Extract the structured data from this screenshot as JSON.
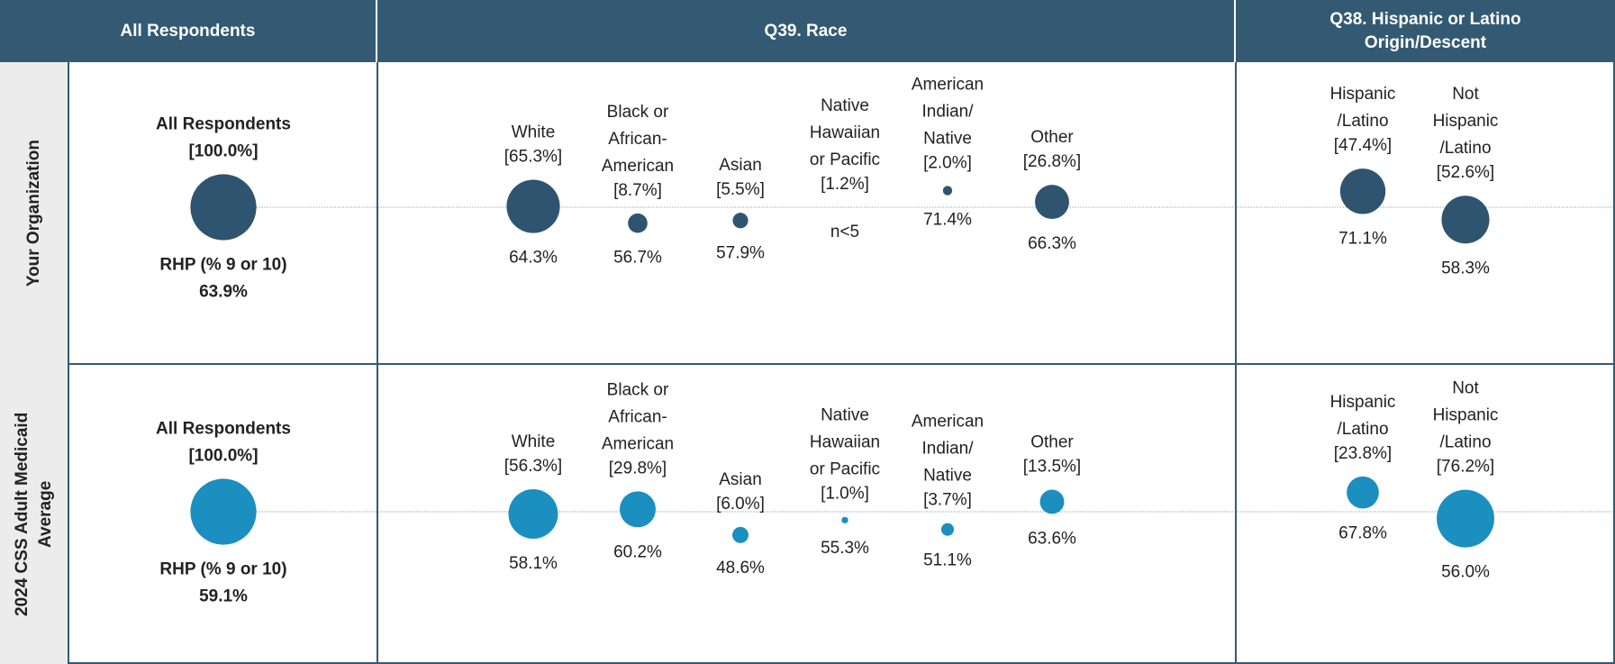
{
  "headers": [
    "All Respondents",
    "Q39. Race",
    "Q38. Hispanic or Latino Origin/Descent"
  ],
  "rows": [
    {
      "label": "Your Organization",
      "color": "#2f5470",
      "all": {
        "label": "All Respondents",
        "share": 100.0,
        "share_label": "[100.0%]",
        "rhp_title": "RHP (% 9 or 10)",
        "rhp": 63.9,
        "rhp_label": "63.9%"
      },
      "race": [
        {
          "label": [
            "White"
          ],
          "share": 65.3,
          "share_label": "[65.3%]",
          "rhp": 64.3,
          "rhp_label": "64.3%"
        },
        {
          "label": [
            "Black or",
            "African-",
            "American"
          ],
          "share": 8.7,
          "share_label": "[8.7%]",
          "rhp": 56.7,
          "rhp_label": "56.7%"
        },
        {
          "label": [
            "Asian"
          ],
          "share": 5.5,
          "share_label": "[5.5%]",
          "rhp": 57.9,
          "rhp_label": "57.9%"
        },
        {
          "label": [
            "Native",
            "Hawaiian",
            "or Pacific"
          ],
          "share": 1.2,
          "share_label": "[1.2%]",
          "rhp": null,
          "rhp_label": "n<5"
        },
        {
          "label": [
            "American",
            "Indian/",
            "Native"
          ],
          "share": 2.0,
          "share_label": "[2.0%]",
          "rhp": 71.4,
          "rhp_label": "71.4%"
        },
        {
          "label": [
            "Other"
          ],
          "share": 26.8,
          "share_label": "[26.8%]",
          "rhp": 66.3,
          "rhp_label": "66.3%"
        }
      ],
      "hispanic": [
        {
          "label": [
            "Hispanic",
            "/Latino"
          ],
          "share": 47.4,
          "share_label": "[47.4%]",
          "rhp": 71.1,
          "rhp_label": "71.1%"
        },
        {
          "label": [
            "Not",
            "Hispanic",
            "/Latino"
          ],
          "share": 52.6,
          "share_label": "[52.6%]",
          "rhp": 58.3,
          "rhp_label": "58.3%"
        }
      ]
    },
    {
      "label": "2024 CSS Adult Medicaid Average",
      "color": "#1a8fc0",
      "all": {
        "label": "All Respondents",
        "share": 100.0,
        "share_label": "[100.0%]",
        "rhp_title": "RHP (% 9 or 10)",
        "rhp": 59.1,
        "rhp_label": "59.1%"
      },
      "race": [
        {
          "label": [
            "White"
          ],
          "share": 56.3,
          "share_label": "[56.3%]",
          "rhp": 58.1,
          "rhp_label": "58.1%"
        },
        {
          "label": [
            "Black or",
            "African-",
            "American"
          ],
          "share": 29.8,
          "share_label": "[29.8%]",
          "rhp": 60.2,
          "rhp_label": "60.2%"
        },
        {
          "label": [
            "Asian"
          ],
          "share": 6.0,
          "share_label": "[6.0%]",
          "rhp": 48.6,
          "rhp_label": "48.6%"
        },
        {
          "label": [
            "Native",
            "Hawaiian",
            "or Pacific"
          ],
          "share": 1.0,
          "share_label": "[1.0%]",
          "rhp": 55.3,
          "rhp_label": "55.3%"
        },
        {
          "label": [
            "American",
            "Indian/",
            "Native"
          ],
          "share": 3.7,
          "share_label": "[3.7%]",
          "rhp": 51.1,
          "rhp_label": "51.1%"
        },
        {
          "label": [
            "Other"
          ],
          "share": 13.5,
          "share_label": "[13.5%]",
          "rhp": 63.6,
          "rhp_label": "63.6%"
        }
      ],
      "hispanic": [
        {
          "label": [
            "Hispanic",
            "/Latino"
          ],
          "share": 23.8,
          "share_label": "[23.8%]",
          "rhp": 67.8,
          "rhp_label": "67.8%"
        },
        {
          "label": [
            "Not",
            "Hispanic",
            "/Latino"
          ],
          "share": 76.2,
          "share_label": "[76.2%]",
          "rhp": 56.0,
          "rhp_label": "56.0%"
        }
      ]
    }
  ]
}
